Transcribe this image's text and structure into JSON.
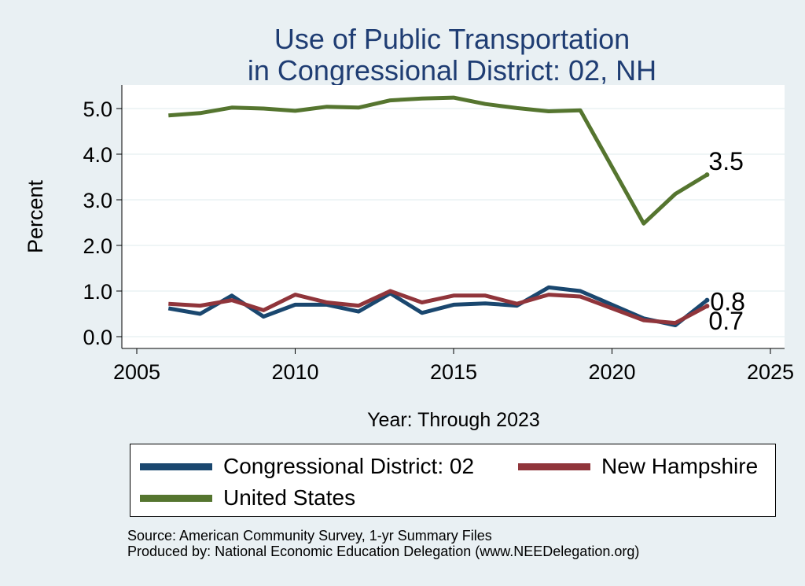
{
  "chart_data": {
    "type": "line",
    "title": [
      "Use of Public Transportation",
      "in Congressional District: 02, NH"
    ],
    "xlabel": "Year: Through 2023",
    "ylabel": "Percent",
    "xlim": [
      2005,
      2025
    ],
    "ylim": [
      0,
      5.5
    ],
    "x_ticks": [
      2005,
      2010,
      2015,
      2020,
      2025
    ],
    "y_ticks": [
      0.0,
      1.0,
      2.0,
      3.0,
      4.0,
      5.0
    ],
    "y_tick_labels": [
      "0.0",
      "1.0",
      "2.0",
      "3.0",
      "4.0",
      "5.0"
    ],
    "grid": true,
    "legend_position": "bottom",
    "x": [
      2006,
      2007,
      2008,
      2009,
      2010,
      2011,
      2012,
      2013,
      2014,
      2015,
      2016,
      2017,
      2018,
      2019,
      2020,
      2021,
      2022,
      2023
    ],
    "series": [
      {
        "name": "Congressional District: 02",
        "color": "#1a476f",
        "values": [
          0.62,
          0.5,
          0.9,
          0.44,
          0.7,
          0.7,
          0.55,
          0.95,
          0.52,
          0.7,
          0.73,
          0.68,
          1.08,
          1.0,
          0.7,
          0.4,
          0.25,
          0.8
        ],
        "end_label": "0.8"
      },
      {
        "name": "New Hampshire",
        "color": "#90353b",
        "values": [
          0.72,
          0.68,
          0.8,
          0.58,
          0.92,
          0.75,
          0.68,
          1.0,
          0.75,
          0.9,
          0.9,
          0.72,
          0.92,
          0.88,
          0.62,
          0.36,
          0.3,
          0.67
        ],
        "end_label": "0.7"
      },
      {
        "name": "United States",
        "color": "#55752f",
        "values": [
          4.85,
          4.9,
          5.02,
          5.0,
          4.95,
          5.04,
          5.02,
          5.18,
          5.22,
          5.24,
          5.1,
          5.01,
          4.94,
          4.96,
          null,
          2.48,
          3.13,
          3.55
        ],
        "end_label": "3.5"
      }
    ]
  },
  "legend": {
    "items": [
      {
        "label": "Congressional District: 02",
        "color": "#1a476f"
      },
      {
        "label": "New Hampshire",
        "color": "#90353b"
      },
      {
        "label": "United States",
        "color": "#55752f"
      }
    ]
  },
  "source": {
    "line1": "Source: American Community Survey, 1-yr Summary Files",
    "line2": "Produced by: National Economic Education Delegation (www.NEEDelegation.org)"
  }
}
